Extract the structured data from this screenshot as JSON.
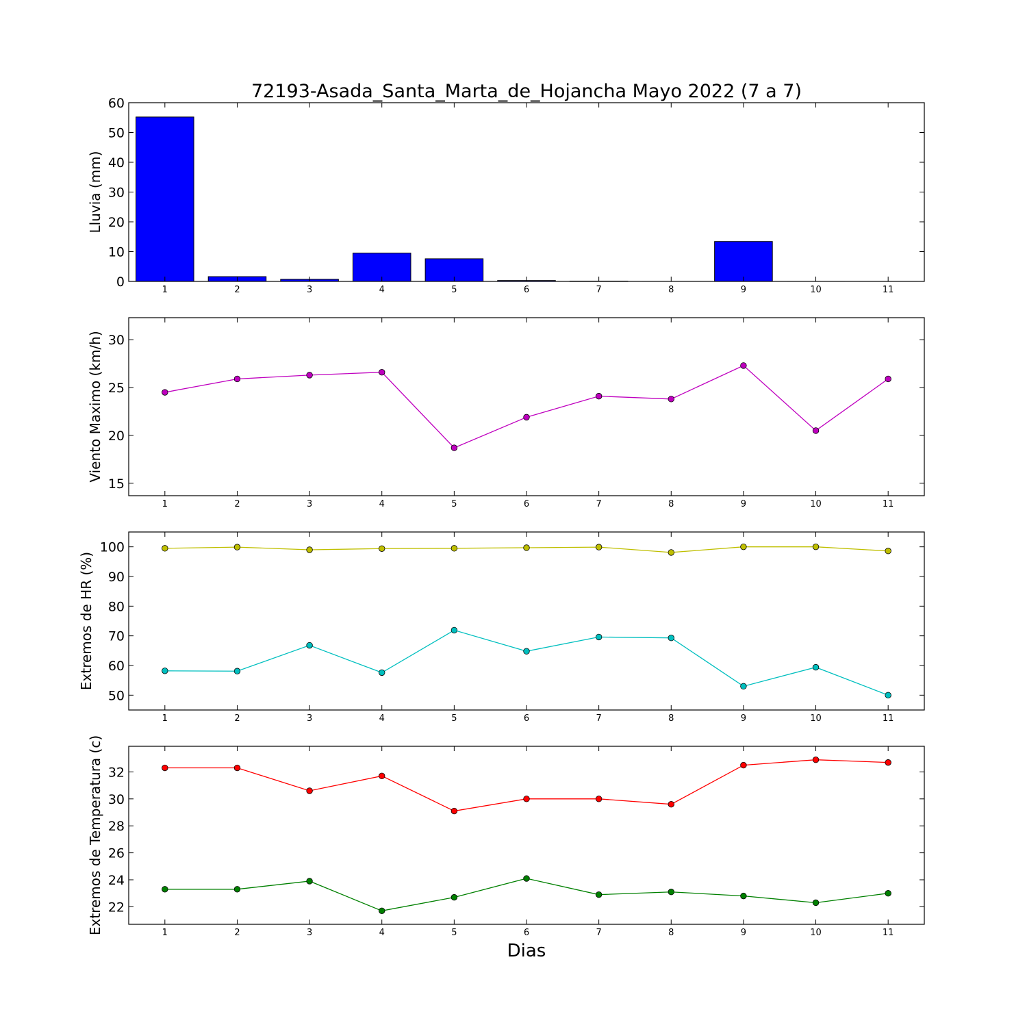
{
  "title": "72193-Asada_Santa_Marta_de_Hojancha Mayo 2022  (7 a 7)",
  "xlabel": "Dias",
  "chart_data": [
    {
      "type": "bar",
      "ylabel": "Lluvia (mm)",
      "categories": [
        "1",
        "2",
        "3",
        "4",
        "5",
        "6",
        "7",
        "8",
        "9",
        "10",
        "11"
      ],
      "x": [
        1,
        2,
        3,
        4,
        5,
        6,
        7,
        8,
        9,
        10,
        11
      ],
      "values": [
        55.2,
        1.6,
        0.7,
        9.5,
        7.6,
        0.3,
        0.1,
        0.0,
        13.4,
        0.0,
        0.0
      ],
      "ylim": [
        0,
        60
      ],
      "yticks": [
        0,
        10,
        20,
        30,
        40,
        50,
        60
      ],
      "xlim": [
        0.5,
        11.5
      ],
      "color": "#0000ff"
    },
    {
      "type": "line",
      "ylabel": "Viento Maximo (km/h)",
      "x": [
        1,
        2,
        3,
        4,
        5,
        6,
        7,
        8,
        9,
        10,
        11
      ],
      "series": [
        {
          "values": [
            24.5,
            25.9,
            26.3,
            26.6,
            18.7,
            21.9,
            24.1,
            23.8,
            27.3,
            20.5,
            25.9
          ],
          "color": "#bf00bf"
        }
      ],
      "ylim": [
        13.7,
        32.3
      ],
      "yticks": [
        15,
        20,
        25,
        30
      ],
      "xlim": [
        0.5,
        11.5
      ]
    },
    {
      "type": "line",
      "ylabel": "Extremos de HR (%)",
      "x": [
        1,
        2,
        3,
        4,
        5,
        6,
        7,
        8,
        9,
        10,
        11
      ],
      "series": [
        {
          "values": [
            99.5,
            99.9,
            99.0,
            99.4,
            99.5,
            99.7,
            99.9,
            98.1,
            100.0,
            100.0,
            98.6
          ],
          "color": "#bfbf00"
        },
        {
          "values": [
            58.2,
            58.1,
            66.8,
            57.6,
            71.9,
            64.8,
            69.6,
            69.3,
            53.0,
            59.4,
            50.0
          ],
          "color": "#00bfbf"
        }
      ],
      "ylim": [
        45,
        105
      ],
      "yticks": [
        50,
        60,
        70,
        80,
        90,
        100
      ],
      "xlim": [
        0.5,
        11.5
      ]
    },
    {
      "type": "line",
      "ylabel": "Extremos de Temperatura (c)",
      "x": [
        1,
        2,
        3,
        4,
        5,
        6,
        7,
        8,
        9,
        10,
        11
      ],
      "series": [
        {
          "values": [
            32.3,
            32.3,
            30.6,
            31.7,
            29.1,
            30.0,
            30.0,
            29.6,
            32.5,
            32.9,
            32.7
          ],
          "color": "#ff0000"
        },
        {
          "values": [
            23.3,
            23.3,
            23.9,
            21.7,
            22.7,
            24.1,
            22.9,
            23.1,
            22.8,
            22.3,
            23.0
          ],
          "color": "#008000"
        }
      ],
      "ylim": [
        20.7,
        33.9
      ],
      "yticks": [
        22,
        24,
        26,
        28,
        30,
        32
      ],
      "xlim": [
        0.5,
        11.5
      ]
    }
  ]
}
